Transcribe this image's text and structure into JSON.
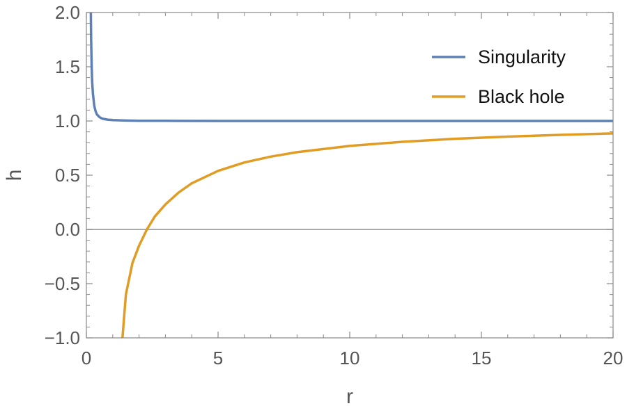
{
  "chart_data": {
    "type": "line",
    "xlabel": "r",
    "ylabel": "h",
    "xlim": [
      0,
      20
    ],
    "ylim": [
      -1.0,
      2.0
    ],
    "x_ticks": [
      "0",
      "5",
      "10",
      "15",
      "20"
    ],
    "y_ticks": [
      "−1.0",
      "−0.5",
      "0.0",
      "0.5",
      "1.0",
      "1.5",
      "2.0"
    ],
    "grid": false,
    "legend_position": "top-right",
    "series": [
      {
        "name": "Singularity",
        "color": "#5E81B5",
        "points": [
          [
            0.17,
            2.0
          ],
          [
            0.18,
            1.75
          ],
          [
            0.2,
            1.5
          ],
          [
            0.22,
            1.36
          ],
          [
            0.25,
            1.25
          ],
          [
            0.3,
            1.14
          ],
          [
            0.35,
            1.09
          ],
          [
            0.4,
            1.06
          ],
          [
            0.5,
            1.035
          ],
          [
            0.6,
            1.022
          ],
          [
            0.8,
            1.012
          ],
          [
            1.0,
            1.008
          ],
          [
            1.5,
            1.004
          ],
          [
            2.0,
            1.002
          ],
          [
            3.0,
            1.001
          ],
          [
            5.0,
            1.0
          ],
          [
            10.0,
            1.0
          ],
          [
            20.0,
            1.0
          ]
        ]
      },
      {
        "name": "Black hole",
        "color": "#E19C24",
        "points": [
          [
            1.37,
            -1.0
          ],
          [
            1.5,
            -0.6
          ],
          [
            1.75,
            -0.31
          ],
          [
            2.0,
            -0.15
          ],
          [
            2.3,
            0.0
          ],
          [
            2.6,
            0.12
          ],
          [
            3.0,
            0.23
          ],
          [
            3.5,
            0.34
          ],
          [
            4.0,
            0.425
          ],
          [
            5.0,
            0.54
          ],
          [
            6.0,
            0.617
          ],
          [
            7.0,
            0.671
          ],
          [
            8.0,
            0.712
          ],
          [
            10.0,
            0.77
          ],
          [
            12.0,
            0.808
          ],
          [
            14.0,
            0.836
          ],
          [
            16.0,
            0.856
          ],
          [
            18.0,
            0.872
          ],
          [
            20.0,
            0.885
          ]
        ]
      }
    ]
  }
}
